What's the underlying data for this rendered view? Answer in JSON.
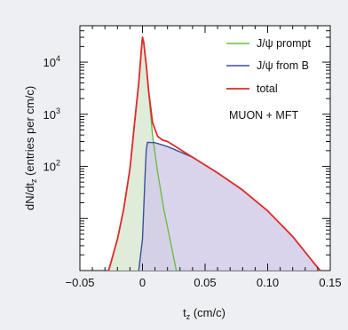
{
  "chart_data": {
    "type": "area",
    "xlabel_main": "t",
    "xlabel_sub": "z",
    "xlabel_unit": " (cm/c)",
    "ylabel_main": "dN/dt",
    "ylabel_sub": "z",
    "ylabel_unit": " (entries per cm/c)",
    "xlim": [
      -0.05,
      0.15
    ],
    "ylog": true,
    "ylim": [
      1,
      50000
    ],
    "x_ticks": [
      -0.05,
      0,
      0.05,
      0.1,
      0.15
    ],
    "x_tick_labels": [
      "−0.05",
      "0",
      "0.05",
      "0.10",
      "0.15"
    ],
    "y_ticks": [
      {
        "base": "10",
        "exp": "2",
        "value": 100
      },
      {
        "base": "10",
        "exp": "3",
        "value": 1000
      },
      {
        "base": "10",
        "exp": "4",
        "value": 10000
      }
    ],
    "legend_position": "top-right",
    "annotation": "MUON + MFT",
    "series": [
      {
        "name": "J/ψ prompt",
        "color": "#6dbb4a",
        "fill": "#dcead6",
        "points": [
          [
            -0.027,
            1.0
          ],
          [
            -0.02,
            4
          ],
          [
            -0.015,
            15
          ],
          [
            -0.01,
            90
          ],
          [
            -0.006,
            800
          ],
          [
            -0.003,
            4000
          ],
          [
            -0.001,
            16000
          ],
          [
            0,
            30000
          ],
          [
            0.001,
            24000
          ],
          [
            0.003,
            9000
          ],
          [
            0.005,
            2500
          ],
          [
            0.008,
            400
          ],
          [
            0.012,
            80
          ],
          [
            0.017,
            15
          ],
          [
            0.022,
            4
          ],
          [
            0.027,
            1.0
          ]
        ]
      },
      {
        "name": "J/ψ from B",
        "color": "#3c4f9a",
        "fill": "#d2cde8",
        "points": [
          [
            -0.003,
            1.0
          ],
          [
            0.0,
            4
          ],
          [
            0.002,
            60
          ],
          [
            0.003,
            200
          ],
          [
            0.004,
            290
          ],
          [
            0.01,
            285
          ],
          [
            0.02,
            240
          ],
          [
            0.04,
            150
          ],
          [
            0.06,
            75
          ],
          [
            0.08,
            35
          ],
          [
            0.1,
            14
          ],
          [
            0.12,
            4.5
          ],
          [
            0.135,
            1.6
          ],
          [
            0.142,
            1.0
          ]
        ]
      },
      {
        "name": "total",
        "color": "#e02a2a",
        "points": [
          [
            -0.027,
            1.0
          ],
          [
            -0.02,
            4
          ],
          [
            -0.015,
            15
          ],
          [
            -0.01,
            90
          ],
          [
            -0.006,
            800
          ],
          [
            -0.003,
            4000
          ],
          [
            -0.001,
            16000
          ],
          [
            0,
            30000
          ],
          [
            0.001,
            24000
          ],
          [
            0.003,
            9000
          ],
          [
            0.005,
            2600
          ],
          [
            0.008,
            700
          ],
          [
            0.012,
            380
          ],
          [
            0.016,
            320
          ],
          [
            0.02,
            300
          ],
          [
            0.04,
            150
          ],
          [
            0.06,
            75
          ],
          [
            0.08,
            35
          ],
          [
            0.1,
            14
          ],
          [
            0.12,
            4.5
          ],
          [
            0.135,
            1.6
          ],
          [
            0.142,
            1.0
          ]
        ]
      }
    ]
  }
}
